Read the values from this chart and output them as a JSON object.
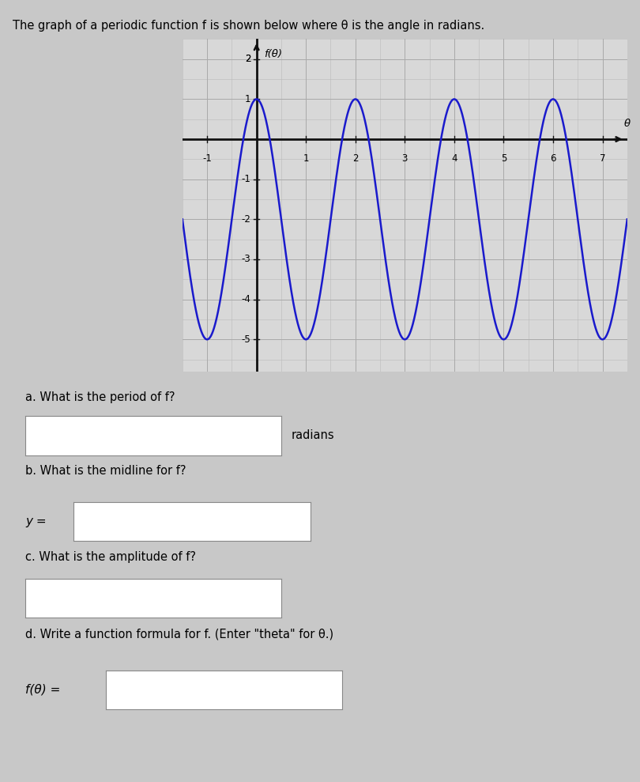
{
  "title": "The graph of a periodic function f is shown below where θ is the angle in radians.",
  "graph_xlabel": "θ",
  "graph_ylabel": "f(θ)",
  "xlim": [
    -1.5,
    7.5
  ],
  "ylim": [
    -5.8,
    2.5
  ],
  "xticks": [
    -1,
    1,
    2,
    3,
    4,
    5,
    6,
    7
  ],
  "yticks": [
    -5,
    -4,
    -3,
    -2,
    -1,
    1,
    2
  ],
  "curve_color": "#1a1acc",
  "curve_lw": 1.8,
  "amplitude": 3,
  "midline": -2,
  "period": 2,
  "phase_shift": 0,
  "bg_color": "#c8c8c8",
  "plot_bg_color": "#d8d8d8",
  "grid_major_color": "#aaaaaa",
  "grid_minor_color": "#bbbbbb",
  "axis_color": "#111111",
  "question_a": "a. What is the period of f?",
  "question_b": "b. What is the midline for f?",
  "question_c": "c. What is the amplitude of f?",
  "question_d": "d. Write a function formula for f. (Enter \"theta\" for θ.)",
  "label_a": "radians",
  "label_b": "y =",
  "label_d": "f(θ) =",
  "figsize": [
    8.1,
    9.89
  ],
  "dpi": 100
}
